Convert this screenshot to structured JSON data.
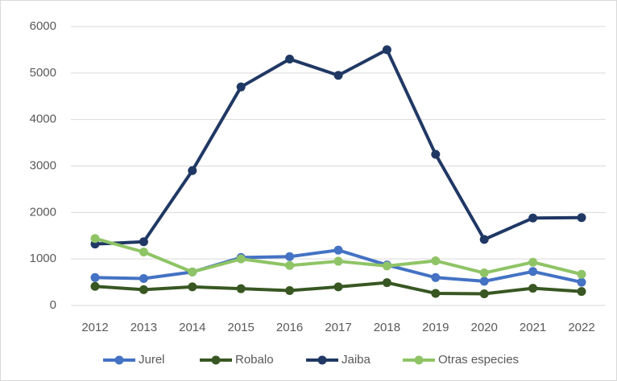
{
  "chart_data": {
    "type": "line",
    "categories": [
      "2012",
      "2013",
      "2014",
      "2015",
      "2016",
      "2017",
      "2018",
      "2019",
      "2020",
      "2021",
      "2022"
    ],
    "series": [
      {
        "name": "Jurel",
        "color": "#4472c4",
        "values": [
          600,
          580,
          720,
          1030,
          1050,
          1190,
          870,
          600,
          520,
          730,
          500
        ]
      },
      {
        "name": "Robalo",
        "color": "#385723",
        "values": [
          410,
          340,
          400,
          360,
          320,
          400,
          490,
          260,
          250,
          370,
          300
        ]
      },
      {
        "name": "Jaiba",
        "color": "#203864",
        "values": [
          1320,
          1370,
          2900,
          4700,
          5300,
          4950,
          5500,
          3250,
          1420,
          1880,
          1890
        ]
      },
      {
        "name": "Otras especies",
        "color": "#8fc466",
        "values": [
          1440,
          1150,
          720,
          1000,
          860,
          950,
          850,
          960,
          700,
          930,
          670
        ]
      }
    ],
    "ylim": [
      0,
      6000
    ],
    "yticks": [
      0,
      1000,
      2000,
      3000,
      4000,
      5000,
      6000
    ],
    "grid": true,
    "legend": "bottom"
  }
}
